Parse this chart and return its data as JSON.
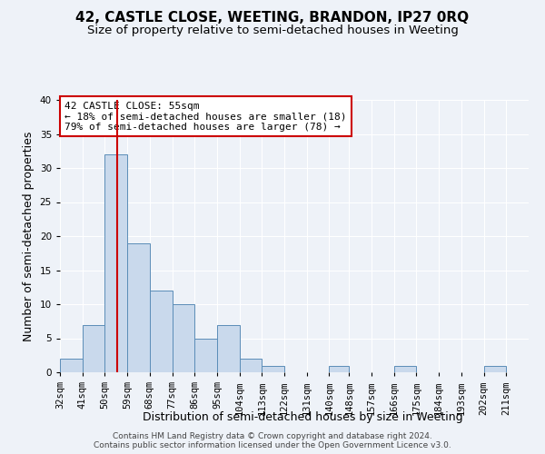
{
  "title": "42, CASTLE CLOSE, WEETING, BRANDON, IP27 0RQ",
  "subtitle": "Size of property relative to semi-detached houses in Weeting",
  "xlabel": "Distribution of semi-detached houses by size in Weeting",
  "ylabel": "Number of semi-detached properties",
  "bin_labels": [
    "32sqm",
    "41sqm",
    "50sqm",
    "59sqm",
    "68sqm",
    "77sqm",
    "86sqm",
    "95sqm",
    "104sqm",
    "113sqm",
    "122sqm",
    "131sqm",
    "140sqm",
    "148sqm",
    "157sqm",
    "166sqm",
    "175sqm",
    "184sqm",
    "193sqm",
    "202sqm",
    "211sqm"
  ],
  "bin_edges": [
    32,
    41,
    50,
    59,
    68,
    77,
    86,
    95,
    104,
    113,
    122,
    131,
    140,
    148,
    157,
    166,
    175,
    184,
    193,
    202,
    211,
    220
  ],
  "counts": [
    2,
    7,
    32,
    19,
    12,
    10,
    5,
    7,
    2,
    1,
    0,
    0,
    1,
    0,
    0,
    1,
    0,
    0,
    0,
    1,
    0
  ],
  "bar_color": "#c9d9ec",
  "bar_edge_color": "#5b8db8",
  "property_value": 55,
  "vline_color": "#cc0000",
  "annotation_line1": "42 CASTLE CLOSE: 55sqm",
  "annotation_line2": "← 18% of semi-detached houses are smaller (18)",
  "annotation_line3": "79% of semi-detached houses are larger (78) →",
  "annotation_box_color": "#ffffff",
  "annotation_box_edge_color": "#cc0000",
  "ylim": [
    0,
    40
  ],
  "yticks": [
    0,
    5,
    10,
    15,
    20,
    25,
    30,
    35,
    40
  ],
  "footer_line1": "Contains HM Land Registry data © Crown copyright and database right 2024.",
  "footer_line2": "Contains public sector information licensed under the Open Government Licence v3.0.",
  "bg_color": "#eef2f8",
  "grid_color": "#ffffff",
  "title_fontsize": 11,
  "subtitle_fontsize": 9.5,
  "label_fontsize": 9,
  "tick_fontsize": 7.5,
  "annotation_fontsize": 8,
  "footer_fontsize": 6.5
}
